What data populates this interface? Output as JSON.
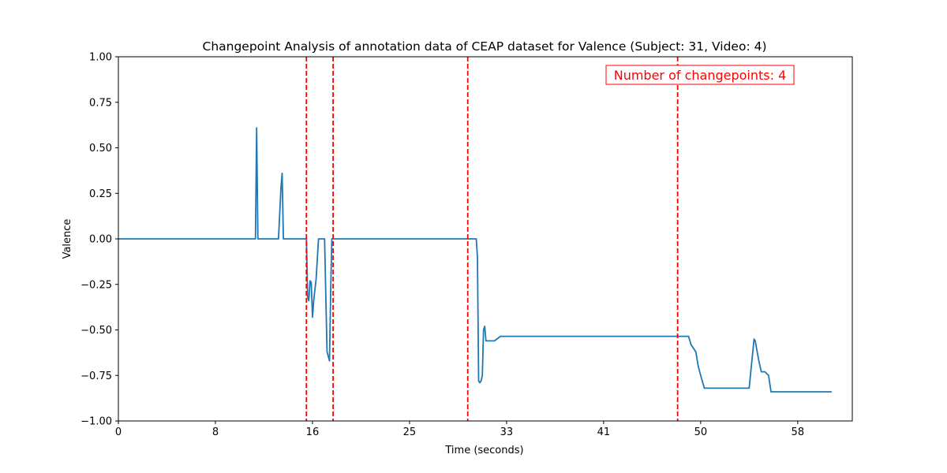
{
  "chart_data": {
    "type": "line",
    "title": "Changepoint Analysis of annotation data of CEAP dataset for Valence (Subject: 31, Video: 4)",
    "xlabel": "Time (seconds)",
    "ylabel": "Valence",
    "xlim": [
      0,
      60.5
    ],
    "ylim": [
      -1.0,
      1.0
    ],
    "x_ticks": [
      0,
      8,
      16,
      25,
      33,
      41,
      50,
      58
    ],
    "x_tick_positions": [
      0,
      8,
      16,
      24,
      32,
      40,
      48,
      56
    ],
    "x_tick_labels": [
      "0",
      "8",
      "16",
      "25",
      "33",
      "41",
      "50",
      "58"
    ],
    "y_ticks": [
      -1.0,
      -0.75,
      -0.5,
      -0.25,
      0.0,
      0.25,
      0.5,
      0.75,
      1.0
    ],
    "y_tick_labels": [
      "−1.00",
      "−0.75",
      "−0.50",
      "−0.25",
      "0.00",
      "0.25",
      "0.50",
      "0.75",
      "1.00"
    ],
    "grid": false,
    "series": [
      {
        "color": "#1f77b4",
        "x": [
          0,
          11.3,
          11.4,
          11.5,
          11.6,
          13.2,
          13.4,
          13.5,
          13.6,
          15.5,
          15.6,
          15.7,
          15.8,
          15.9,
          16.0,
          16.1,
          16.2,
          16.3,
          16.5,
          16.7,
          16.8,
          17.0,
          17.2,
          17.4,
          17.5,
          17.6,
          17.7,
          17.8,
          17.9,
          18.0,
          20,
          25,
          29.5,
          29.6,
          29.7,
          29.8,
          29.9,
          30.0,
          30.1,
          30.2,
          30.3,
          30.5,
          31.0,
          31.5,
          35,
          40,
          45,
          47.0,
          47.2,
          47.4,
          47.6,
          47.8,
          48.0,
          48.3,
          50,
          52,
          52.4,
          52.5,
          52.6,
          52.8,
          53.0,
          53.3,
          53.6,
          53.8,
          54,
          56,
          58,
          58.8
        ],
        "y": [
          0,
          0,
          0.61,
          0,
          0,
          0,
          0.28,
          0.36,
          0,
          0,
          -0.32,
          -0.34,
          -0.23,
          -0.24,
          -0.43,
          -0.34,
          -0.28,
          -0.22,
          0,
          0,
          0,
          0,
          -0.62,
          -0.67,
          -0.3,
          0,
          0,
          0,
          0,
          0,
          0,
          0,
          0,
          -0.1,
          -0.78,
          -0.79,
          -0.78,
          -0.75,
          -0.5,
          -0.48,
          -0.56,
          -0.56,
          -0.56,
          -0.535,
          -0.535,
          -0.535,
          -0.535,
          -0.535,
          -0.58,
          -0.6,
          -0.62,
          -0.7,
          -0.75,
          -0.82,
          -0.82,
          -0.82,
          -0.55,
          -0.56,
          -0.6,
          -0.67,
          -0.73,
          -0.73,
          -0.75,
          -0.84,
          -0.84,
          -0.84,
          -0.84,
          -0.84
        ]
      }
    ],
    "changepoints": [
      15.5,
      17.7,
      28.8,
      46.1
    ],
    "changepoint_color": "#ff0000",
    "annotation": {
      "text": "Number of changepoints: 4",
      "color": "#ff0000",
      "placement": "top-right"
    }
  }
}
